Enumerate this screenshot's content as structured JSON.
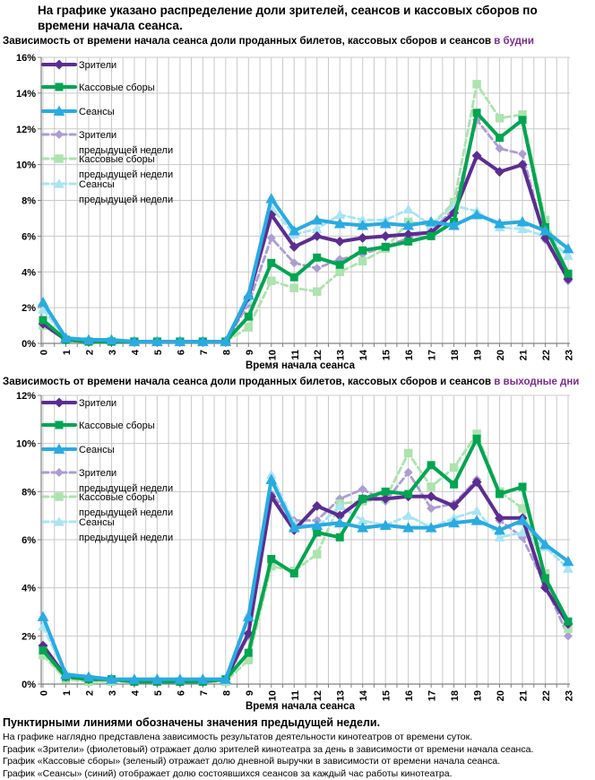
{
  "header": {
    "title": "На графике указано распределение доли зрителей, сеансов и кассовых сборов по времени начала сеанса."
  },
  "colors": {
    "viewers": "#5C2D91",
    "boxoffice": "#00A551",
    "sessions": "#29ABE2",
    "viewers_prev": "#AC9DD3",
    "boxoffice_prev": "#ADE3AD",
    "sessions_prev": "#A8E4F4",
    "accent_text": "#7B2D8E",
    "grid": "#C9C9C9",
    "axis": "#808080"
  },
  "chart_data": [
    {
      "type": "line",
      "title": "Зависимость от времени начала сеанса доли проданных билетов, кассовых сборов и сеансов",
      "title_accent": "в будни",
      "xlabel": "Время начала сеанса",
      "ylim": [
        0,
        16
      ],
      "ytick_step": 2,
      "grid": true,
      "legend_position": "top-left",
      "x": [
        "0",
        "1",
        "2",
        "3",
        "4",
        "5",
        "6",
        "7",
        "8",
        "9",
        "10",
        "11",
        "12",
        "13",
        "14",
        "15",
        "16",
        "17",
        "18",
        "19",
        "20",
        "21",
        "22",
        "23"
      ],
      "series": [
        {
          "name": "Зрители",
          "key": "viewers",
          "style": "solid",
          "marker": "diamond",
          "values": [
            1.1,
            0.2,
            0.1,
            0.1,
            0.1,
            0.1,
            0.1,
            0.1,
            0.1,
            2.6,
            7.2,
            5.4,
            6.0,
            5.7,
            5.9,
            6.0,
            6.1,
            6.2,
            7.3,
            10.5,
            9.6,
            10.0,
            5.9,
            3.6
          ]
        },
        {
          "name": "Кассовые сборы",
          "key": "boxoffice",
          "style": "solid",
          "marker": "square",
          "values": [
            1.3,
            0.2,
            0.1,
            0.1,
            0.1,
            0.1,
            0.1,
            0.1,
            0.1,
            1.5,
            4.5,
            3.7,
            4.8,
            4.4,
            5.2,
            5.4,
            5.7,
            6.0,
            6.8,
            12.9,
            11.5,
            12.5,
            6.5,
            3.9
          ]
        },
        {
          "name": "Сеансы",
          "key": "sessions",
          "style": "solid",
          "marker": "triangle",
          "values": [
            2.3,
            0.3,
            0.2,
            0.2,
            0.1,
            0.1,
            0.1,
            0.1,
            0.1,
            2.7,
            8.1,
            6.3,
            6.9,
            6.7,
            6.6,
            6.7,
            6.6,
            6.8,
            6.6,
            7.2,
            6.7,
            6.8,
            6.3,
            5.3
          ]
        },
        {
          "name": "Зрители",
          "name2": "предыдущей недели",
          "key": "viewers_prev",
          "style": "dashed",
          "marker": "diamond",
          "values": [
            1.1,
            0.2,
            0.1,
            0.1,
            0.1,
            0.1,
            0.1,
            0.1,
            0.1,
            2.2,
            5.9,
            4.5,
            4.2,
            4.7,
            5.0,
            5.4,
            5.9,
            6.3,
            7.5,
            12.5,
            10.9,
            10.6,
            5.8,
            3.5
          ]
        },
        {
          "name": "Кассовые сборы",
          "name2": "предыдущей недели",
          "key": "boxoffice_prev",
          "style": "dashed",
          "marker": "square",
          "values": [
            1.0,
            0.2,
            0.1,
            0.1,
            0.1,
            0.1,
            0.1,
            0.1,
            0.1,
            0.9,
            3.5,
            3.1,
            2.9,
            4.0,
            4.6,
            5.3,
            6.8,
            6.6,
            7.9,
            14.5,
            12.6,
            12.8,
            6.9,
            3.9
          ]
        },
        {
          "name": "Сеансы",
          "name2": "предыдущей недели",
          "key": "sessions_prev",
          "style": "dashed",
          "marker": "triangle",
          "values": [
            1.9,
            0.3,
            0.2,
            0.2,
            0.1,
            0.1,
            0.1,
            0.1,
            0.1,
            2.4,
            7.6,
            6.1,
            6.4,
            7.2,
            6.9,
            6.9,
            7.5,
            6.6,
            7.7,
            7.4,
            6.5,
            6.4,
            6.0,
            4.9
          ]
        }
      ]
    },
    {
      "type": "line",
      "title": "Зависимость от времени начала сеанса доли проданных билетов, кассовых сборов и сеансов",
      "title_accent": "в выходные дни",
      "xlabel": "Время начала сеанса",
      "ylim": [
        0,
        12
      ],
      "ytick_step": 2,
      "grid": true,
      "legend_position": "top-left",
      "x": [
        "0",
        "1",
        "2",
        "3",
        "4",
        "5",
        "6",
        "7",
        "8",
        "9",
        "10",
        "11",
        "12",
        "13",
        "14",
        "15",
        "16",
        "17",
        "18",
        "19",
        "20",
        "21",
        "22",
        "23"
      ],
      "series": [
        {
          "name": "Зрители",
          "key": "viewers",
          "style": "solid",
          "marker": "diamond",
          "values": [
            1.6,
            0.3,
            0.2,
            0.2,
            0.1,
            0.1,
            0.1,
            0.1,
            0.2,
            2.1,
            7.8,
            6.4,
            7.4,
            7.0,
            7.7,
            7.7,
            7.8,
            7.8,
            7.4,
            8.4,
            6.9,
            6.9,
            4.0,
            2.5
          ]
        },
        {
          "name": "Кассовые сборы",
          "key": "boxoffice",
          "style": "solid",
          "marker": "square",
          "values": [
            1.4,
            0.3,
            0.2,
            0.2,
            0.1,
            0.1,
            0.1,
            0.1,
            0.2,
            1.3,
            5.2,
            4.6,
            6.3,
            6.1,
            7.7,
            8.0,
            7.9,
            9.1,
            8.3,
            10.2,
            7.9,
            8.2,
            4.4,
            2.6
          ]
        },
        {
          "name": "Сеансы",
          "key": "sessions",
          "style": "solid",
          "marker": "triangle",
          "values": [
            2.8,
            0.4,
            0.3,
            0.2,
            0.2,
            0.2,
            0.2,
            0.2,
            0.2,
            2.8,
            8.5,
            6.5,
            6.6,
            6.7,
            6.5,
            6.6,
            6.5,
            6.5,
            6.7,
            6.8,
            6.4,
            6.8,
            5.8,
            5.1
          ]
        },
        {
          "name": "Зрители",
          "name2": "предыдущей недели",
          "key": "viewers_prev",
          "style": "dashed",
          "marker": "diamond",
          "values": [
            1.5,
            0.3,
            0.2,
            0.2,
            0.1,
            0.1,
            0.1,
            0.1,
            0.2,
            2.0,
            7.9,
            6.8,
            6.8,
            7.7,
            8.1,
            7.6,
            8.8,
            7.3,
            7.5,
            8.5,
            6.8,
            6.1,
            4.1,
            2.0
          ]
        },
        {
          "name": "Кассовые сборы",
          "name2": "предыдущей недели",
          "key": "boxoffice_prev",
          "style": "dashed",
          "marker": "square",
          "values": [
            1.2,
            0.2,
            0.1,
            0.1,
            0.1,
            0.1,
            0.1,
            0.1,
            0.1,
            1.0,
            4.9,
            4.7,
            5.4,
            7.5,
            7.6,
            7.7,
            9.6,
            8.2,
            9.0,
            10.4,
            8.0,
            7.3,
            4.6,
            2.3
          ]
        },
        {
          "name": "Сеансы",
          "name2": "предыдущей недели",
          "key": "sessions_prev",
          "style": "dashed",
          "marker": "triangle",
          "values": [
            2.4,
            0.4,
            0.3,
            0.2,
            0.2,
            0.2,
            0.2,
            0.2,
            0.2,
            2.9,
            8.7,
            6.7,
            6.5,
            7.4,
            6.8,
            6.6,
            7.0,
            6.5,
            6.9,
            7.2,
            6.1,
            6.3,
            5.7,
            4.8
          ]
        }
      ]
    }
  ],
  "footnote": {
    "bold_line": "Пунктирными линиями обозначены значения предыдущей недели.",
    "lines": [
      "На графике наглядно представлена зависимость результатов деятельности кинотеатров от времени суток.",
      "График «Зрители» (фиолетовый) отражает долю зрителей кинотеатра за день в зависимости от времени начала сеанса.",
      "График «Кассовые сборы» (зеленый) отражает долю дневной выручки в зависимости от времени начала сеанса.",
      "График «Сеансы» (синий) отображает долю состоявшихся сеансов за каждый час работы кинотеатра."
    ]
  }
}
